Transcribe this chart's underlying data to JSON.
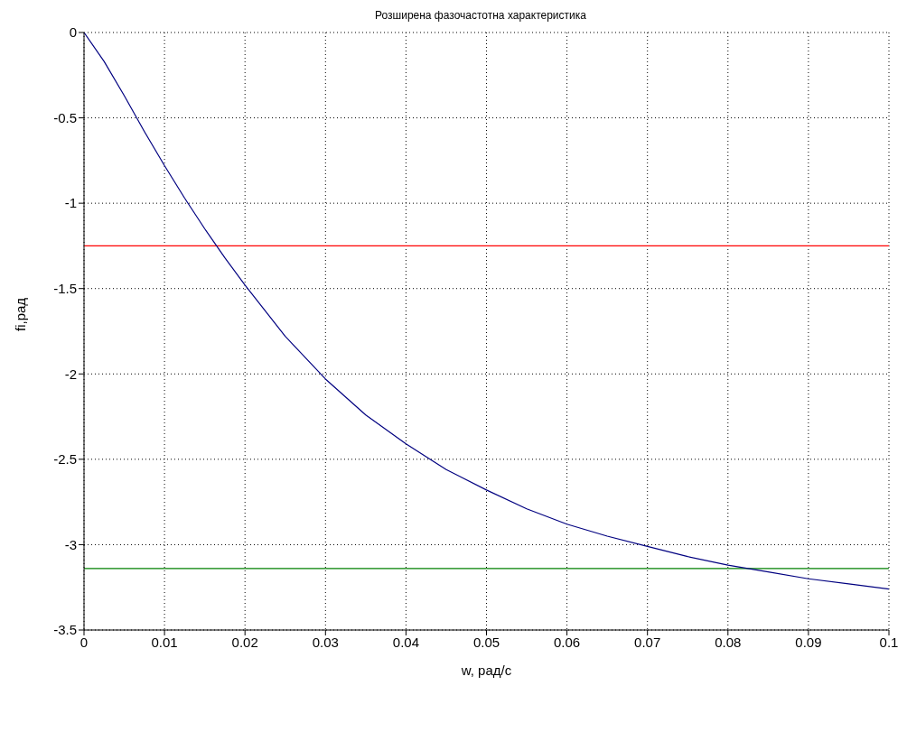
{
  "chart_data": {
    "type": "line",
    "title": "Розширена фазочастотна характеристика",
    "xlabel": "w, рад/с",
    "ylabel": "fi,рад",
    "x": [
      0,
      0.0025,
      0.005,
      0.0075,
      0.01,
      0.0125,
      0.015,
      0.0175,
      0.02,
      0.025,
      0.03,
      0.035,
      0.04,
      0.045,
      0.05,
      0.055,
      0.06,
      0.065,
      0.07,
      0.075,
      0.08,
      0.085,
      0.09,
      0.095,
      0.1
    ],
    "series": [
      {
        "color": "#000080",
        "values": [
          0,
          -0.17,
          -0.37,
          -0.58,
          -0.78,
          -0.97,
          -1.15,
          -1.32,
          -1.48,
          -1.78,
          -2.03,
          -2.24,
          -2.41,
          -2.56,
          -2.68,
          -2.79,
          -2.88,
          -2.95,
          -3.01,
          -3.07,
          -3.12,
          -3.16,
          -3.2,
          -3.23,
          -3.26
        ]
      }
    ],
    "xlim": [
      0,
      0.1
    ],
    "xticks": [
      0,
      0.01,
      0.02,
      0.03,
      0.04,
      0.05,
      0.06,
      0.07,
      0.08,
      0.09,
      0.1
    ],
    "ylim": [
      -3.5,
      0
    ],
    "yticks": [
      -3.5,
      -3,
      -2.5,
      -2,
      -1.5,
      -1,
      -0.5,
      0
    ],
    "ref_lines": [
      {
        "axis": "y",
        "value": -1.25,
        "color": "#ff0000"
      },
      {
        "axis": "y",
        "value": -3.14,
        "color": "#008000"
      }
    ],
    "grid": true,
    "line_style": "solid",
    "marker": "none"
  }
}
